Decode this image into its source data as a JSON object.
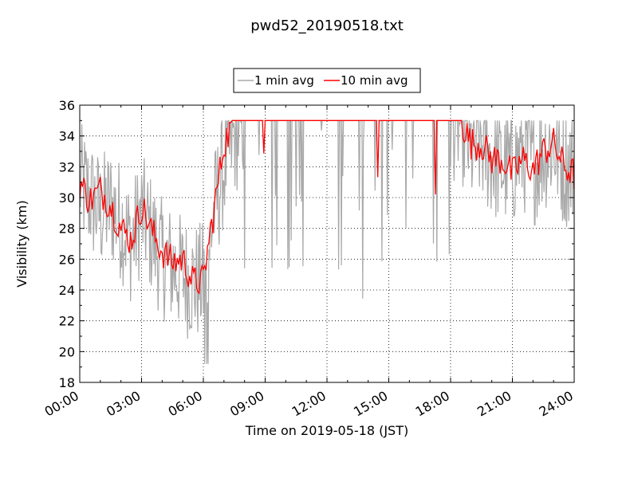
{
  "chart_data": {
    "type": "line",
    "title": "pwd52_20190518.txt",
    "xlabel": "Time on 2019-05-18 (JST)",
    "ylabel": "Visibility (km)",
    "xlim": [
      "00:00",
      "24:00"
    ],
    "ylim": [
      18,
      36
    ],
    "x_ticks": [
      "00:00",
      "03:00",
      "06:00",
      "09:00",
      "12:00",
      "15:00",
      "18:00",
      "21:00",
      "24:00"
    ],
    "y_ticks": [
      "18",
      "20",
      "22",
      "24",
      "26",
      "28",
      "30",
      "32",
      "34",
      "36"
    ],
    "grid": true,
    "legend_position": "top-center",
    "series": [
      {
        "name": "1 min avg",
        "color": "#a9a9a9",
        "x": [
          "00:00",
          "00:30",
          "01:00",
          "01:30",
          "02:00",
          "02:30",
          "03:00",
          "03:30",
          "04:00",
          "04:30",
          "05:00",
          "05:30",
          "06:00",
          "06:15",
          "06:30",
          "07:00",
          "07:30",
          "08:00",
          "09:00",
          "10:00",
          "11:00",
          "12:00",
          "13:00",
          "14:00",
          "15:00",
          "16:00",
          "17:00",
          "18:00",
          "18:30",
          "19:00",
          "19:30",
          "20:00",
          "20:30",
          "21:00",
          "21:30",
          "22:00",
          "22:30",
          "23:00",
          "23:30",
          "24:00"
        ],
        "y": [
          31,
          30,
          29,
          29.5,
          28.5,
          27,
          29,
          27.5,
          26,
          25.5,
          25,
          24.5,
          24.5,
          26.5,
          29,
          32,
          34,
          35,
          35,
          35,
          35,
          35,
          35,
          35,
          35,
          35,
          35,
          35,
          35,
          33,
          33.5,
          32.5,
          32,
          32,
          33,
          32,
          33,
          33.5,
          32,
          32
        ],
        "min": 19.2,
        "max": 35
      },
      {
        "name": "10 min avg",
        "color": "#ff0000",
        "x": [
          "00:00",
          "00:30",
          "01:00",
          "01:30",
          "02:00",
          "02:30",
          "03:00",
          "03:30",
          "04:00",
          "04:30",
          "05:00",
          "05:30",
          "06:00",
          "06:15",
          "06:30",
          "07:00",
          "07:30",
          "08:00",
          "09:00",
          "10:00",
          "11:00",
          "12:00",
          "13:00",
          "14:00",
          "15:00",
          "16:00",
          "17:00",
          "18:00",
          "18:30",
          "19:00",
          "19:30",
          "20:00",
          "20:30",
          "21:00",
          "21:30",
          "22:00",
          "22:30",
          "23:00",
          "23:30",
          "24:00"
        ],
        "y": [
          31,
          29.8,
          30.5,
          29.5,
          28,
          27.2,
          29.5,
          27.8,
          26.5,
          25.8,
          26,
          24.5,
          24.6,
          27,
          29,
          33.5,
          35,
          35,
          35,
          35,
          35,
          35,
          35,
          35,
          35,
          35,
          35,
          35,
          35,
          33.5,
          33.5,
          32.5,
          32.5,
          31.5,
          32.5,
          31.8,
          33,
          33.5,
          32,
          31.5
        ]
      }
    ]
  }
}
